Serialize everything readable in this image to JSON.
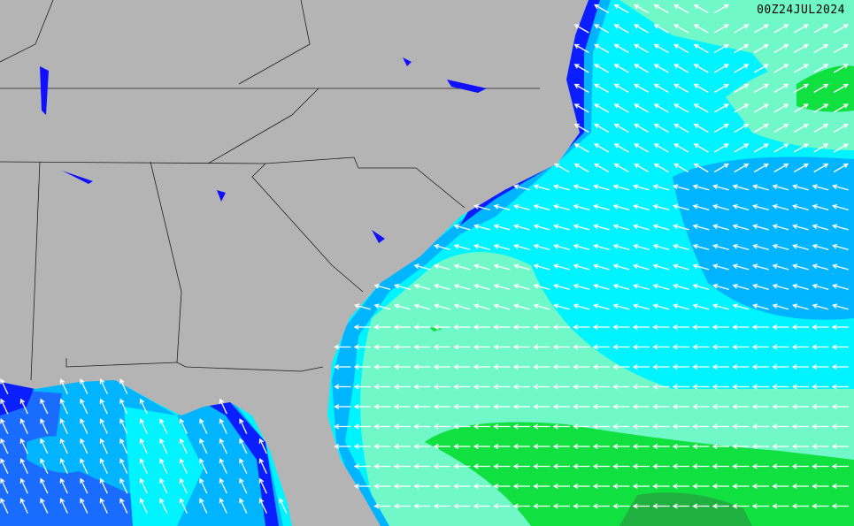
{
  "timestamp": "00Z24JUL2024",
  "colors": {
    "land": "#b4b4b4",
    "border": "#202020",
    "lake": "#1010ff",
    "wave_darkblue": "#0a1eff",
    "wave_blue": "#1a6bff",
    "wave_lightblue": "#00b4ff",
    "wave_cyan": "#00f4ff",
    "wave_aqua": "#70f8c8",
    "wave_green": "#10e040",
    "wave_darkgreen": "#20b040",
    "arrow": "#ffffff"
  }
}
